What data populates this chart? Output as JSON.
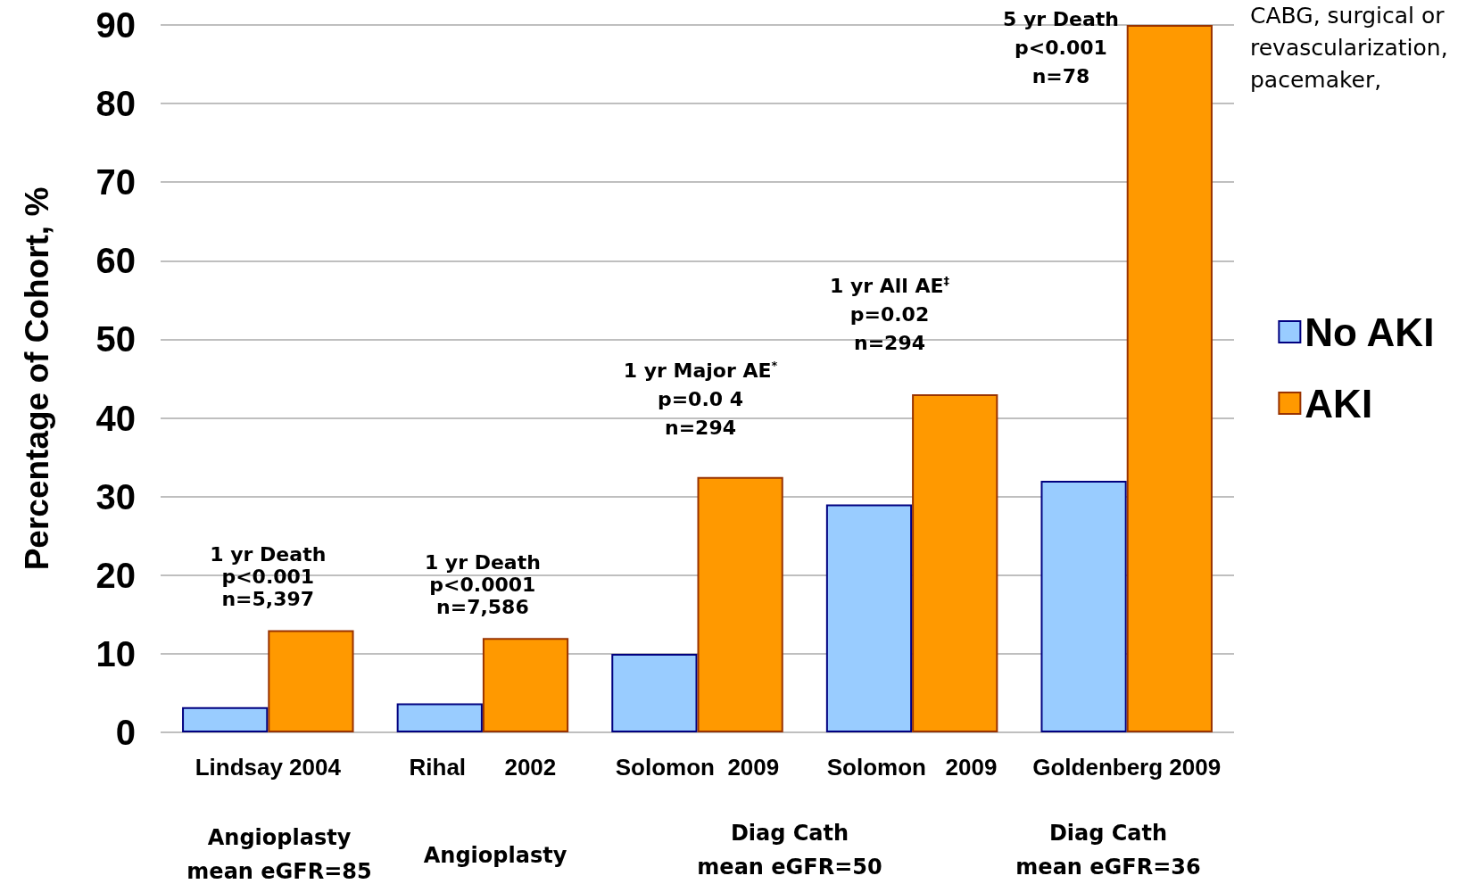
{
  "chart_data": {
    "type": "bar",
    "ylabel": "Percentage of Cohort, %",
    "categories": [
      "Lindsay 2004",
      "Rihal      2002",
      "Solomon  2009",
      "Solomon   2009",
      "Goldenberg 2009"
    ],
    "series": [
      {
        "name": "No AKI",
        "color": "#99ccff",
        "values": [
          3.2,
          3.7,
          10,
          29,
          32
        ]
      },
      {
        "name": "AKI",
        "color": "#ff9900",
        "values": [
          13,
          12,
          32.5,
          43,
          90
        ]
      }
    ],
    "ylim": [
      0,
      90
    ],
    "yticks": [
      0,
      10,
      20,
      30,
      40,
      50,
      60,
      70,
      80,
      90
    ],
    "grid": "y",
    "legend": "right",
    "annotations": [
      {
        "text": "1 yr Death\np<0.001\nn=5,397",
        "x": "Lindsay 2004",
        "y": 13
      },
      {
        "text": "1 yr Death\np<0.0001\nn=7,586",
        "x": "Rihal      2002",
        "y": 12
      },
      "1 yr Major AE$^{*}$\np=0.0 4\nn=294",
      "1 yr All AE$^{‡}$\np=0.02\nn=294",
      "5 yr Death\np<0.001\nn=78",
      "Angioplasty\nmean eGFR=85",
      "Angioplasty",
      "Diag Cath\nmean eGFR=50",
      "Diag Cath\nmean eGFR=36",
      "CABG, surgical or\nrevascularization,\npacemaker,"
    ]
  }
}
